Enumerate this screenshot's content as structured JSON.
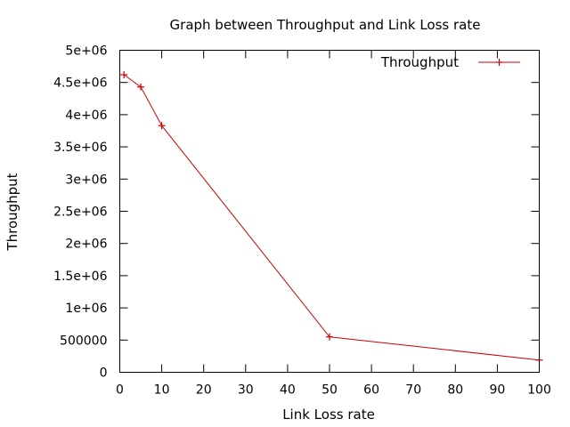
{
  "chart_data": {
    "type": "line",
    "title": "Graph between Throughput and Link Loss rate",
    "xlabel": "Link Loss rate",
    "ylabel": "Throughput",
    "xlim": [
      0,
      100
    ],
    "ylim": [
      0,
      5000000
    ],
    "x_ticks": [
      0,
      10,
      20,
      30,
      40,
      50,
      60,
      70,
      80,
      90,
      100
    ],
    "x_tick_labels": [
      "0",
      "10",
      "20",
      "30",
      "40",
      "50",
      "60",
      "70",
      "80",
      "90",
      "100"
    ],
    "y_ticks": [
      0,
      500000,
      1000000,
      1500000,
      2000000,
      2500000,
      3000000,
      3500000,
      4000000,
      4500000,
      5000000
    ],
    "y_tick_labels": [
      "0",
      "500000",
      "1e+06",
      "1.5e+06",
      "2e+06",
      "2.5e+06",
      "3e+06",
      "3.5e+06",
      "4e+06",
      "4.5e+06",
      "5e+06"
    ],
    "grid": false,
    "legend_position": "top-right",
    "series": [
      {
        "name": "Throughput",
        "color": "#cc0000",
        "marker": "plus",
        "x": [
          1,
          5,
          10,
          50,
          100
        ],
        "y": [
          4620000,
          4430000,
          3830000,
          550000,
          190000
        ]
      }
    ]
  }
}
